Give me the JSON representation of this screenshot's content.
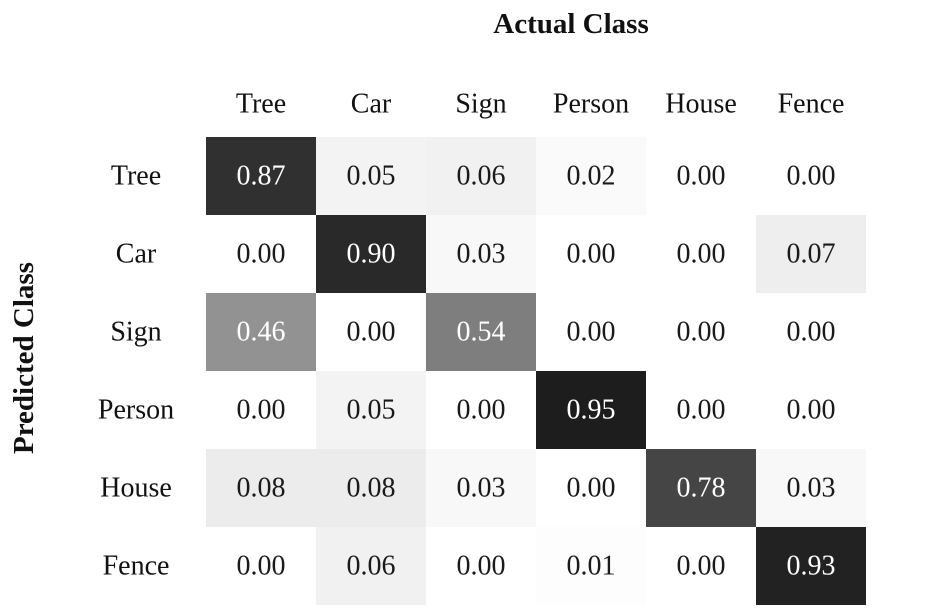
{
  "chart_data": {
    "type": "heatmap",
    "title": "",
    "xlabel": "Actual Class",
    "ylabel": "Predicted Class",
    "x_categories": [
      "Tree",
      "Car",
      "Sign",
      "Person",
      "House",
      "Fence"
    ],
    "y_categories": [
      "Tree",
      "Car",
      "Sign",
      "Person",
      "House",
      "Fence"
    ],
    "values": [
      [
        0.87,
        0.05,
        0.06,
        0.02,
        0.0,
        0.0
      ],
      [
        0.0,
        0.9,
        0.03,
        0.0,
        0.0,
        0.07
      ],
      [
        0.46,
        0.0,
        0.54,
        0.0,
        0.0,
        0.0
      ],
      [
        0.0,
        0.05,
        0.0,
        0.95,
        0.0,
        0.0
      ],
      [
        0.08,
        0.08,
        0.03,
        0.0,
        0.78,
        0.03
      ],
      [
        0.0,
        0.06,
        0.0,
        0.01,
        0.0,
        0.93
      ]
    ],
    "value_labels": [
      [
        "0.87",
        "0.05",
        "0.06",
        "0.02",
        "0.00",
        "0.00"
      ],
      [
        "0.00",
        "0.90",
        "0.03",
        "0.00",
        "0.00",
        "0.07"
      ],
      [
        "0.46",
        "0.00",
        "0.54",
        "0.00",
        "0.00",
        "0.00"
      ],
      [
        "0.00",
        "0.05",
        "0.00",
        "0.95",
        "0.00",
        "0.00"
      ],
      [
        "0.08",
        "0.08",
        "0.03",
        "0.00",
        "0.78",
        "0.03"
      ],
      [
        "0.00",
        "0.06",
        "0.00",
        "0.01",
        "0.00",
        "0.93"
      ]
    ],
    "colormap": "greys",
    "value_range": [
      0,
      1
    ],
    "colors": {
      "low": "#ffffff",
      "high": "#111111",
      "dark_text": "#1a1a1a",
      "light_text": "#ffffff"
    },
    "x_axis_position": "top",
    "grid": false,
    "legend": "none"
  }
}
